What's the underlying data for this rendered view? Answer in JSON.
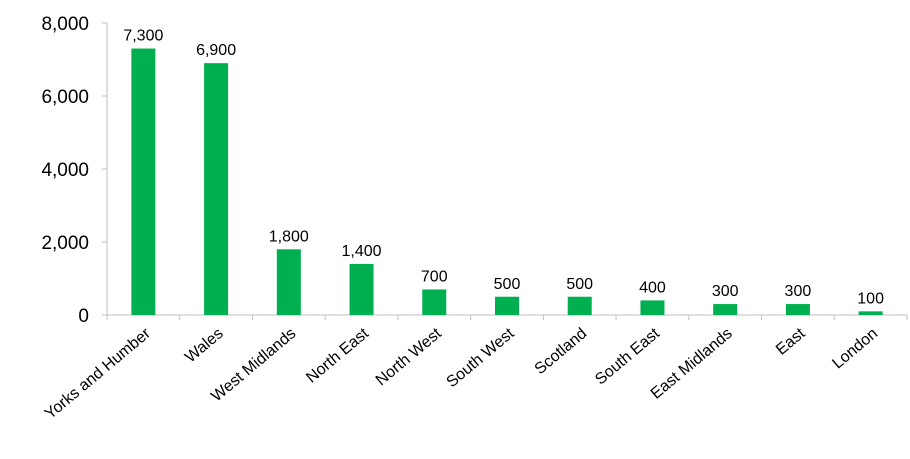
{
  "chart_data": {
    "type": "bar",
    "title": "",
    "xlabel": "",
    "ylabel": "",
    "categories": [
      "Yorks and Humber",
      "Wales",
      "West Midlands",
      "North East",
      "North West",
      "South West",
      "Scotland",
      "South East",
      "East Midlands",
      "East",
      "London"
    ],
    "values": [
      7300,
      6900,
      1800,
      1400,
      700,
      500,
      500,
      400,
      300,
      300,
      100
    ],
    "data_labels": [
      "7,300",
      "6,900",
      "1,800",
      "1,400",
      "700",
      "500",
      "500",
      "400",
      "300",
      "300",
      "100"
    ],
    "ylim": [
      0,
      8000
    ],
    "yticks": [
      0,
      2000,
      4000,
      6000,
      8000
    ],
    "ytick_labels": [
      "0",
      "2,000",
      "4,000",
      "6,000",
      "8,000"
    ],
    "grid": false,
    "legend": "none",
    "colors": {
      "bar": "#00B050",
      "axis": "#bfbfbf",
      "text": "#000000"
    }
  }
}
